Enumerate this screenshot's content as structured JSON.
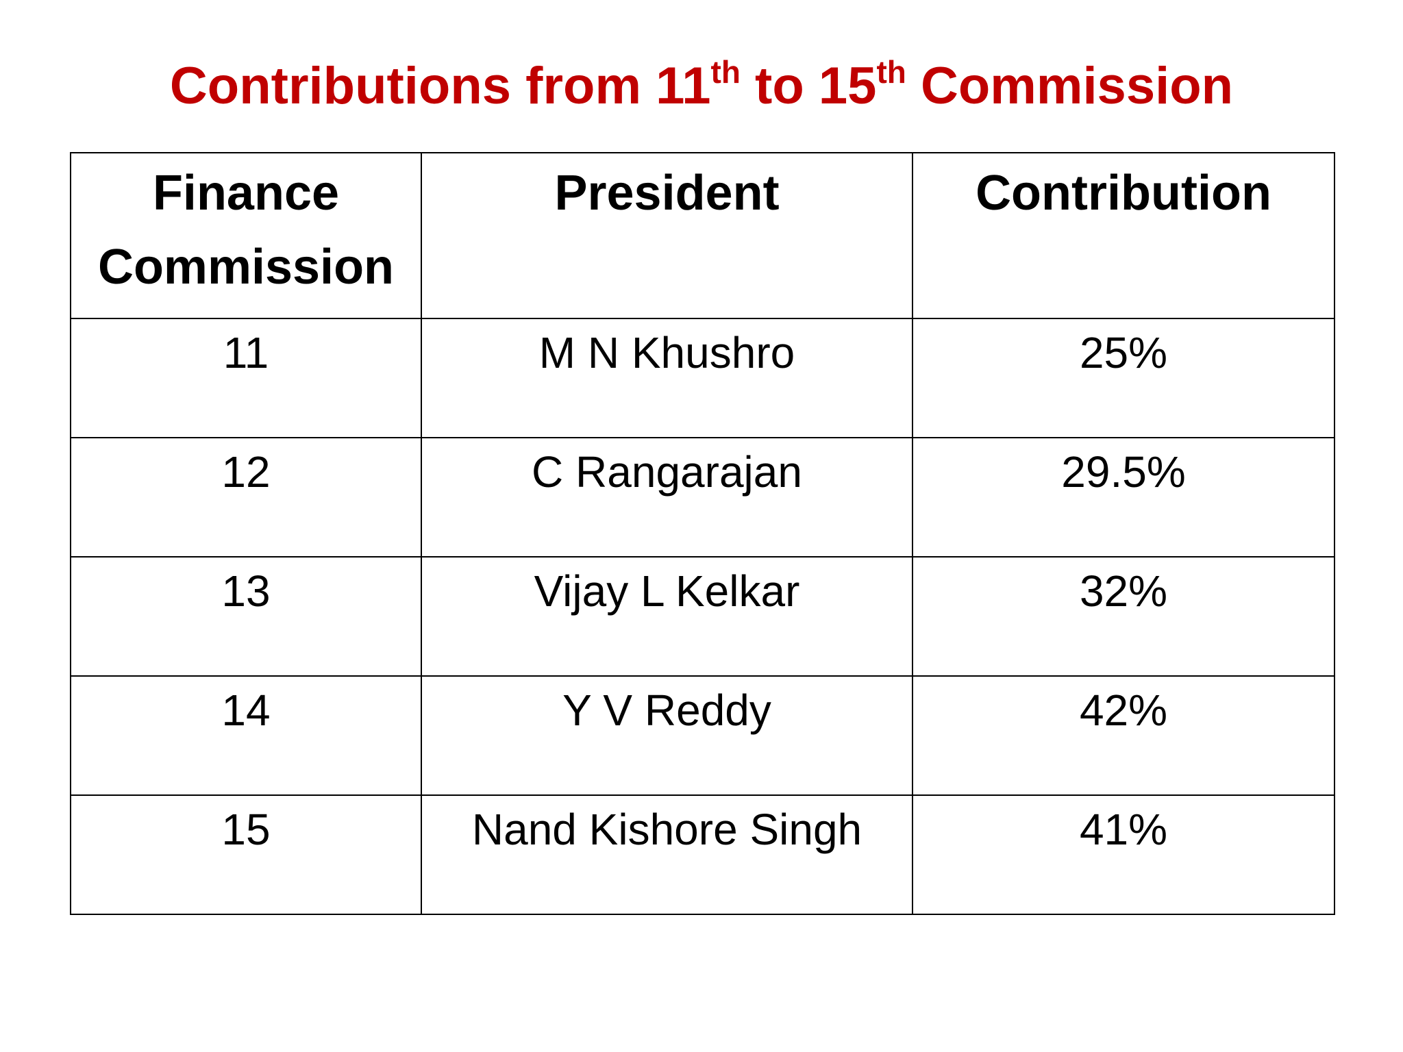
{
  "title": {
    "part_1": "Contributions from 11",
    "sup_1": "th",
    "part_2": "to 15",
    "sup_2": "th",
    "part_3": "Commission"
  },
  "table": {
    "header": [
      "Finance Commission",
      "President",
      "Contribution"
    ],
    "rows": [
      [
        "11",
        "M N Khushro",
        "25%"
      ],
      [
        "12",
        "C Rangarajan",
        "29.5%"
      ],
      [
        "13",
        "Vijay L Kelkar",
        "32%"
      ],
      [
        "14",
        "Y V Reddy",
        "42%"
      ],
      [
        "15",
        "Nand Kishore Singh",
        "41%"
      ]
    ]
  }
}
